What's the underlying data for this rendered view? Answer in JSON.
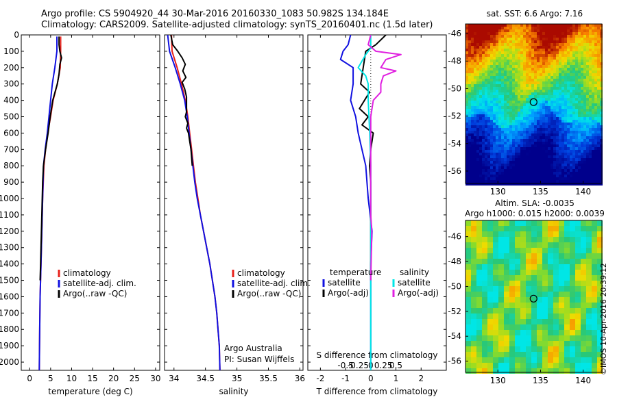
{
  "header": {
    "line1": "Argo profile: CS 5904920_44 30-Mar-2016 20160330_1083 50.982S 134.184E",
    "line2": "Climatology: CARS2009. Satellite-adjusted climatology: synTS_20160401.nc (1.5d later)"
  },
  "credit": "©IMOS 10-Apr-2016 20:39:12",
  "colors": {
    "red": "#e8201a",
    "blue": "#1010e0",
    "black": "#000000",
    "cyan": "#00e6e6",
    "magenta": "#e020e0"
  },
  "chart_data": [
    {
      "id": "temperature",
      "type": "line",
      "xlabel": "temperature (deg C)",
      "ylabel": "",
      "xlim": [
        -2,
        31
      ],
      "ylim": [
        2050,
        0
      ],
      "xticks": [
        0,
        5,
        10,
        15,
        20,
        25,
        30
      ],
      "yticks": [
        0,
        100,
        200,
        300,
        400,
        500,
        600,
        700,
        800,
        900,
        1000,
        1100,
        1200,
        1300,
        1400,
        1500,
        1600,
        1700,
        1800,
        1900,
        2000
      ],
      "legend": {
        "position": "center-right",
        "entries": [
          "climatology",
          "satellite-adj. clim.",
          "Argo(..raw -QC)"
        ]
      },
      "series": [
        {
          "name": "climatology",
          "color": "red",
          "points": [
            [
              7.4,
              10
            ],
            [
              7.4,
              100
            ],
            [
              7.3,
              200
            ],
            [
              6.6,
              300
            ],
            [
              5.6,
              400
            ],
            [
              5.0,
              500
            ],
            [
              4.3,
              600
            ],
            [
              3.8,
              700
            ],
            [
              3.4,
              800
            ],
            [
              3.1,
              1000
            ],
            [
              2.9,
              1200
            ],
            [
              2.7,
              1400
            ],
            [
              2.5,
              1600
            ],
            [
              2.4,
              1800
            ],
            [
              2.3,
              2050
            ]
          ]
        },
        {
          "name": "satellite-adj. clim.",
          "color": "blue",
          "points": [
            [
              6.5,
              10
            ],
            [
              6.5,
              100
            ],
            [
              6.0,
              200
            ],
            [
              5.4,
              300
            ],
            [
              5.0,
              400
            ],
            [
              4.6,
              500
            ],
            [
              4.2,
              600
            ],
            [
              3.7,
              700
            ],
            [
              3.3,
              800
            ],
            [
              3.1,
              1000
            ],
            [
              2.9,
              1200
            ],
            [
              2.7,
              1400
            ],
            [
              2.5,
              1600
            ],
            [
              2.4,
              1800
            ],
            [
              2.3,
              2050
            ]
          ]
        },
        {
          "name": "Argo(..raw -QC)",
          "color": "black",
          "points": [
            [
              7.0,
              10
            ],
            [
              7.0,
              60
            ],
            [
              7.2,
              100
            ],
            [
              7.6,
              140
            ],
            [
              7.2,
              180
            ],
            [
              7.0,
              240
            ],
            [
              6.6,
              300
            ],
            [
              5.5,
              400
            ],
            [
              4.9,
              500
            ],
            [
              4.4,
              600
            ],
            [
              3.8,
              700
            ],
            [
              3.3,
              800
            ],
            [
              3.1,
              900
            ],
            [
              3.0,
              1000
            ],
            [
              2.9,
              1100
            ],
            [
              2.8,
              1200
            ],
            [
              2.7,
              1300
            ],
            [
              2.6,
              1400
            ],
            [
              2.5,
              1500
            ]
          ]
        }
      ]
    },
    {
      "id": "salinity",
      "type": "line",
      "xlabel": "salinity",
      "ylabel": "",
      "xlim": [
        33.85,
        36.05
      ],
      "ylim": [
        2050,
        0
      ],
      "xticks": [
        34,
        34.5,
        35,
        35.5,
        36
      ],
      "xtick_labels": [
        "34",
        "34.5",
        "35",
        "35.5",
        "36"
      ],
      "legend": {
        "position": "center-right",
        "entries": [
          "climatology",
          "satellite-adj. clim.",
          "Argo(..raw -QC)"
        ]
      },
      "annotations": [
        "Argo Australia",
        "PI: Susan Wijffels"
      ],
      "series": [
        {
          "name": "climatology",
          "color": "red",
          "points": [
            [
              33.96,
              0
            ],
            [
              33.97,
              100
            ],
            [
              34.05,
              200
            ],
            [
              34.12,
              300
            ],
            [
              34.18,
              400
            ],
            [
              34.22,
              500
            ],
            [
              34.25,
              600
            ],
            [
              34.28,
              700
            ],
            [
              34.31,
              800
            ],
            [
              34.34,
              900
            ],
            [
              34.38,
              1000
            ],
            [
              34.42,
              1100
            ],
            [
              34.47,
              1200
            ],
            [
              34.52,
              1300
            ],
            [
              34.57,
              1400
            ],
            [
              34.61,
              1500
            ],
            [
              34.65,
              1600
            ],
            [
              34.68,
              1700
            ],
            [
              34.7,
              1800
            ],
            [
              34.72,
              1900
            ],
            [
              34.73,
              2050
            ]
          ]
        },
        {
          "name": "satellite-adj. clim.",
          "color": "blue",
          "points": [
            [
              33.9,
              0
            ],
            [
              33.93,
              100
            ],
            [
              34.02,
              200
            ],
            [
              34.1,
              300
            ],
            [
              34.17,
              400
            ],
            [
              34.21,
              500
            ],
            [
              34.24,
              600
            ],
            [
              34.27,
              700
            ],
            [
              34.3,
              800
            ],
            [
              34.33,
              900
            ],
            [
              34.37,
              1000
            ],
            [
              34.42,
              1100
            ],
            [
              34.47,
              1200
            ],
            [
              34.52,
              1300
            ],
            [
              34.57,
              1400
            ],
            [
              34.61,
              1500
            ],
            [
              34.65,
              1600
            ],
            [
              34.68,
              1700
            ],
            [
              34.7,
              1800
            ],
            [
              34.72,
              1900
            ],
            [
              34.73,
              2050
            ]
          ]
        },
        {
          "name": "Argo(..raw -QC)",
          "color": "black",
          "points": [
            [
              33.95,
              0
            ],
            [
              33.98,
              60
            ],
            [
              34.06,
              100
            ],
            [
              34.13,
              140
            ],
            [
              34.18,
              180
            ],
            [
              34.14,
              220
            ],
            [
              34.19,
              260
            ],
            [
              34.13,
              290
            ],
            [
              34.17,
              330
            ],
            [
              34.2,
              380
            ],
            [
              34.2,
              420
            ],
            [
              34.2,
              470
            ],
            [
              34.18,
              500
            ],
            [
              34.22,
              540
            ],
            [
              34.2,
              570
            ],
            [
              34.23,
              600
            ],
            [
              34.25,
              650
            ],
            [
              34.27,
              700
            ],
            [
              34.29,
              800
            ]
          ]
        }
      ]
    },
    {
      "id": "difference",
      "type": "line",
      "xlabel": "T difference from climatology",
      "xlabel_top": "S difference from climatology",
      "ylabel": "",
      "xlim": [
        -2.5,
        3.0
      ],
      "ylim": [
        2050,
        0
      ],
      "xticks": [
        -2,
        -1,
        0,
        1,
        2
      ],
      "s_xticks": [
        -0.5,
        -0.25,
        0,
        0.25,
        0.5
      ],
      "s_xtick_labels": [
        "-0.5",
        "-0.25",
        "0",
        "0.25",
        "0.5"
      ],
      "legend": {
        "position": "center",
        "groups": [
          {
            "title": "temperature",
            "entries": [
              "satellite",
              "Argo(-adj)"
            ]
          },
          {
            "title": "salinity",
            "entries": [
              "satellite",
              "Argo(-adj)"
            ]
          }
        ]
      },
      "series": [
        {
          "name": "temperature satellite",
          "color": "blue",
          "points": [
            [
              -0.8,
              0
            ],
            [
              -0.9,
              60
            ],
            [
              -1.1,
              100
            ],
            [
              -1.2,
              150
            ],
            [
              -0.7,
              200
            ],
            [
              -0.7,
              300
            ],
            [
              -0.8,
              400
            ],
            [
              -0.6,
              500
            ],
            [
              -0.5,
              600
            ],
            [
              -0.35,
              700
            ],
            [
              -0.2,
              800
            ],
            [
              -0.1,
              1000
            ],
            [
              0.05,
              1200
            ],
            [
              0.0,
              1400
            ],
            [
              0.0,
              1600
            ],
            [
              0.0,
              1800
            ],
            [
              0.0,
              2050
            ]
          ]
        },
        {
          "name": "temperature Argo(-adj)",
          "color": "black",
          "points": [
            [
              0.6,
              0
            ],
            [
              0.2,
              60
            ],
            [
              0.0,
              80
            ],
            [
              -0.2,
              100
            ],
            [
              -0.3,
              200
            ],
            [
              -0.4,
              300
            ],
            [
              -0.05,
              350
            ],
            [
              -0.45,
              450
            ],
            [
              -0.1,
              500
            ],
            [
              -0.35,
              550
            ],
            [
              0.1,
              600
            ],
            [
              0.0,
              700
            ],
            [
              -0.05,
              800
            ],
            [
              0.0,
              900
            ],
            [
              0.0,
              1000
            ],
            [
              0.0,
              1100
            ],
            [
              0.0,
              1200
            ],
            [
              0.0,
              1500
            ]
          ]
        },
        {
          "name": "salinity satellite",
          "color": "cyan",
          "points": [
            [
              0.0,
              0
            ],
            [
              0.0,
              80
            ],
            [
              -0.1,
              120
            ],
            [
              -0.25,
              200
            ],
            [
              -0.1,
              250
            ],
            [
              -0.05,
              300
            ],
            [
              -0.05,
              400
            ],
            [
              -0.02,
              600
            ],
            [
              0.0,
              800
            ],
            [
              0.0,
              1000
            ],
            [
              0.0,
              1200
            ],
            [
              0.0,
              1400
            ],
            [
              0.0,
              1600
            ],
            [
              0.0,
              1800
            ],
            [
              0.0,
              2050
            ]
          ]
        },
        {
          "name": "salinity Argo(-adj)",
          "color": "magenta",
          "points": [
            [
              0.0,
              0
            ],
            [
              -0.05,
              60
            ],
            [
              0.1,
              100
            ],
            [
              0.6,
              120
            ],
            [
              0.3,
              150
            ],
            [
              0.2,
              200
            ],
            [
              0.5,
              220
            ],
            [
              0.25,
              250
            ],
            [
              0.2,
              300
            ],
            [
              0.2,
              350
            ],
            [
              0.05,
              400
            ],
            [
              0.0,
              500
            ],
            [
              0.0,
              700
            ],
            [
              0.0,
              800
            ],
            [
              0.0,
              1000
            ],
            [
              0.0,
              1100
            ],
            [
              0.02,
              1200
            ],
            [
              0.0,
              1500
            ]
          ]
        }
      ]
    },
    {
      "id": "sst_map",
      "type": "heatmap",
      "title": "sat. SST: 6.6 Argo: 7.16",
      "xlim": [
        126.2,
        142.2
      ],
      "ylim": [
        -56.9,
        -45.3
      ],
      "xticks": [
        130,
        135,
        140
      ],
      "yticks": [
        -46,
        -48,
        -50,
        -52,
        -54,
        -56
      ],
      "marker": {
        "lon": 134.184,
        "lat": -50.982
      }
    },
    {
      "id": "sla_map",
      "type": "heatmap",
      "title_lines": [
        "Altim. SLA: -0.0035",
        "Argo h1000: 0.015 h2000: 0.0039"
      ],
      "xlim": [
        126.2,
        142.2
      ],
      "ylim": [
        -56.9,
        -44.7
      ],
      "xticks": [
        130,
        135,
        140
      ],
      "yticks": [
        -46,
        -48,
        -50,
        -52,
        -54,
        -56
      ],
      "marker": {
        "lon": 134.184,
        "lat": -50.982
      }
    }
  ]
}
